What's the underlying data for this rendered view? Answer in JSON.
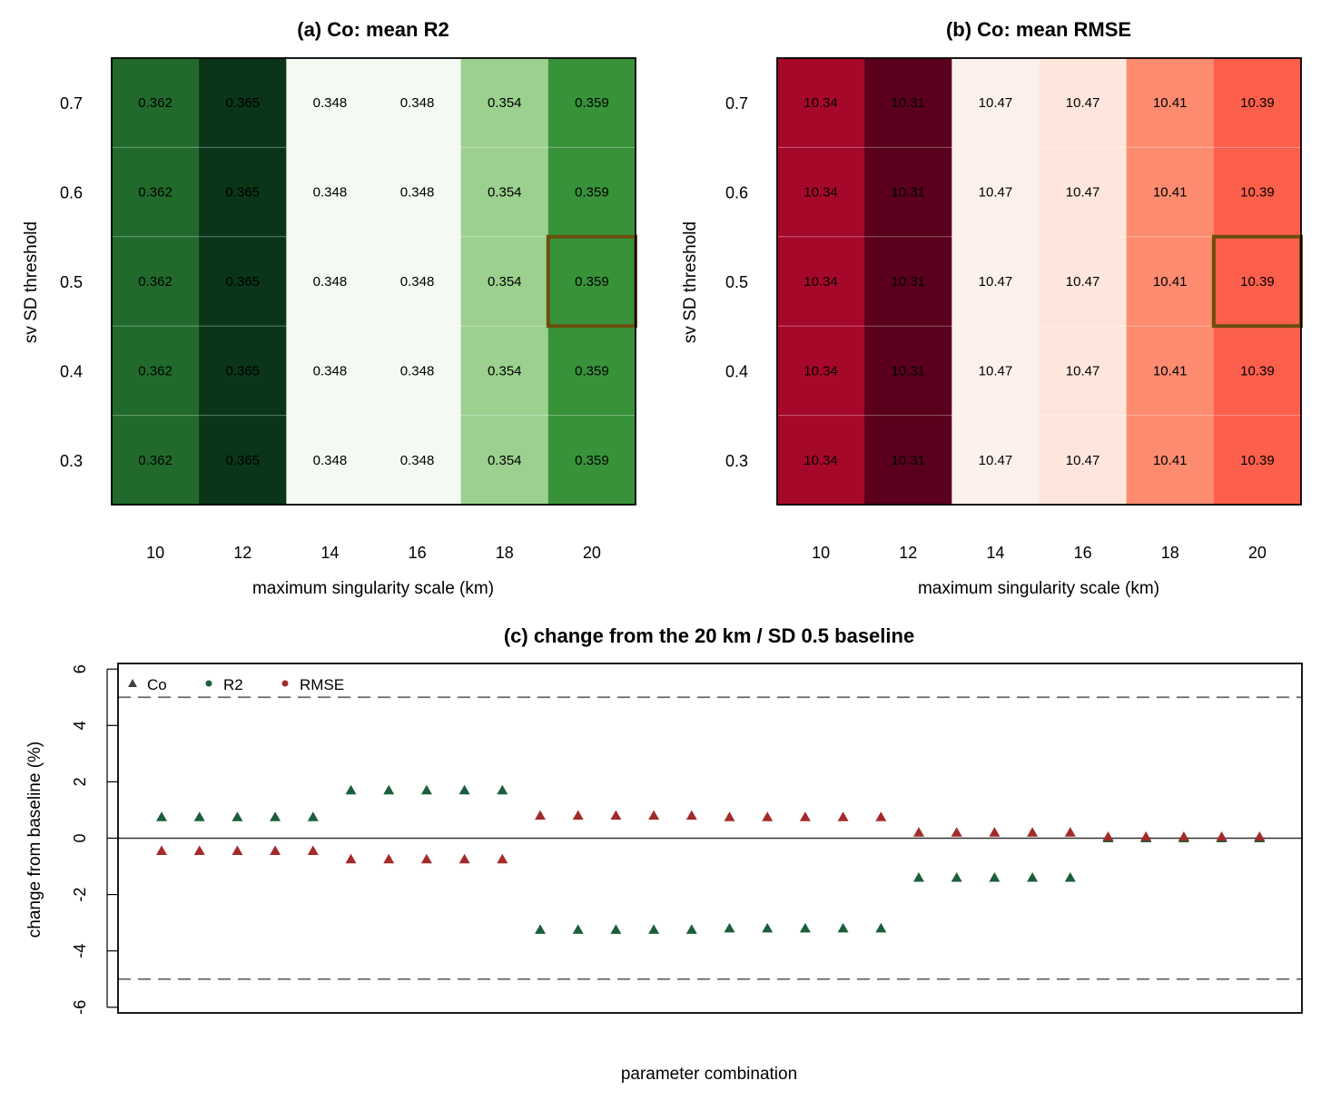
{
  "chart_data": [
    {
      "id": "a",
      "type": "heatmap",
      "title": "(a) Co: mean R2",
      "xlabel": "maximum singularity scale (km)",
      "ylabel": "sv SD threshold",
      "x_categories": [
        "10",
        "12",
        "14",
        "16",
        "18",
        "20"
      ],
      "y_categories": [
        "0.7",
        "0.6",
        "0.5",
        "0.4",
        "0.3"
      ],
      "column_values": [
        "0.362",
        "0.365",
        "0.348",
        "0.348",
        "0.354",
        "0.359"
      ],
      "column_colors": [
        "#216a2c",
        "#0a3518",
        "#f4f9f1",
        "#f4f9f1",
        "#9bd08e",
        "#37923a"
      ],
      "highlight": {
        "x": "20",
        "y": "0.5",
        "color": "#6b4e0d"
      }
    },
    {
      "id": "b",
      "type": "heatmap",
      "title": "(b) Co: mean RMSE",
      "xlabel": "maximum singularity scale (km)",
      "ylabel": "sv SD threshold",
      "x_categories": [
        "10",
        "12",
        "14",
        "16",
        "18",
        "20"
      ],
      "y_categories": [
        "0.7",
        "0.6",
        "0.5",
        "0.4",
        "0.3"
      ],
      "column_values": [
        "10.34",
        "10.31",
        "10.47",
        "10.47",
        "10.41",
        "10.39"
      ],
      "column_colors": [
        "#a6082a",
        "#5a001c",
        "#fbf0ec",
        "#fee6dc",
        "#fc8b6f",
        "#fc5f4b"
      ],
      "highlight": {
        "x": "20",
        "y": "0.5",
        "color": "#6b4e0d"
      }
    },
    {
      "id": "c",
      "type": "scatter",
      "title": "(c) change from the 20 km / SD 0.5 baseline",
      "xlabel": "parameter combination",
      "ylabel": "change from baseline (%)",
      "ylim": [
        -6.2,
        6.2
      ],
      "yticks": [
        "6",
        "4",
        "2",
        "0",
        "-2",
        "-4",
        "-6"
      ],
      "reference_lines": [
        5,
        -5
      ],
      "zero_line": 0,
      "grid": false,
      "legend": {
        "position": "top-left",
        "entries": [
          {
            "label": "Co",
            "marker": "triangle",
            "color": "#404040"
          },
          {
            "label": "R2",
            "marker": "circle",
            "color": "#1b5e3b"
          },
          {
            "label": "RMSE",
            "marker": "circle",
            "color": "#a32a2a"
          }
        ]
      },
      "marker": "triangle",
      "series": [
        {
          "key": "R2",
          "color": "#1b5e3b",
          "x": [
            1,
            2,
            3,
            4,
            5,
            6,
            7,
            8,
            9,
            10,
            11,
            12,
            13,
            14,
            15,
            16,
            17,
            18,
            19,
            20,
            21,
            22,
            23,
            24,
            25,
            26,
            27,
            28,
            29,
            30
          ],
          "values": [
            0.75,
            0.75,
            0.75,
            0.75,
            0.75,
            1.7,
            1.7,
            1.7,
            1.7,
            1.7,
            -3.25,
            -3.25,
            -3.25,
            -3.25,
            -3.25,
            -3.2,
            -3.2,
            -3.2,
            -3.2,
            -3.2,
            -1.4,
            -1.4,
            -1.4,
            -1.4,
            -1.4,
            0,
            0,
            0,
            0,
            0
          ]
        },
        {
          "key": "RMSE",
          "color": "#a32a2a",
          "x": [
            1,
            2,
            3,
            4,
            5,
            6,
            7,
            8,
            9,
            10,
            11,
            12,
            13,
            14,
            15,
            16,
            17,
            18,
            19,
            20,
            21,
            22,
            23,
            24,
            25,
            26,
            27,
            28,
            29,
            30
          ],
          "values": [
            -0.45,
            -0.45,
            -0.45,
            -0.45,
            -0.45,
            -0.75,
            -0.75,
            -0.75,
            -0.75,
            -0.75,
            0.8,
            0.8,
            0.8,
            0.8,
            0.8,
            0.75,
            0.75,
            0.75,
            0.75,
            0.75,
            0.2,
            0.2,
            0.2,
            0.2,
            0.2,
            0.05,
            0.05,
            0.05,
            0.05,
            0.05
          ]
        }
      ]
    }
  ]
}
